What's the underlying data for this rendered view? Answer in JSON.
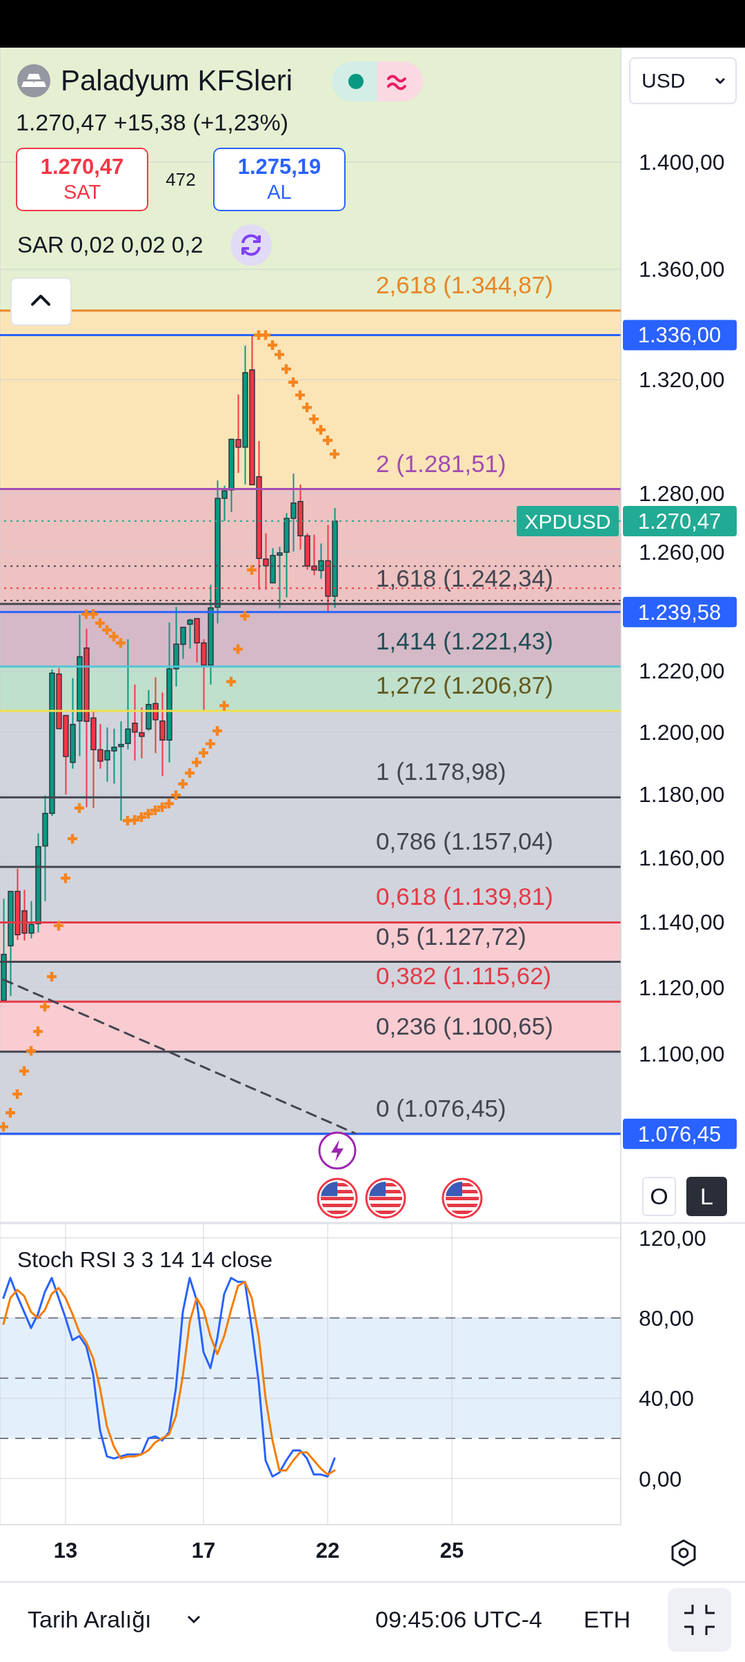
{
  "chart_data": [
    {
      "type": "candlestick",
      "title": "Paladyum KFSleri",
      "subtitle": "1.270,47 +15,38 (+1,23%)",
      "categories": [
        null,
        null,
        null,
        null,
        null,
        null,
        null,
        null,
        null,
        "13",
        null,
        null,
        null,
        null,
        null,
        null,
        null,
        null,
        null,
        null,
        null,
        null,
        null,
        null,
        null,
        null,
        null,
        null,
        null,
        "17",
        null,
        null,
        null,
        null,
        null,
        null,
        null,
        null,
        null,
        null,
        null,
        null,
        null,
        null,
        null,
        null,
        null,
        "22",
        null,
        null,
        null,
        null,
        null,
        null,
        null,
        null,
        null,
        null,
        null,
        null,
        null,
        null,
        null,
        null,
        null,
        "25",
        null,
        null,
        null,
        null,
        null,
        null,
        null,
        null,
        null,
        null,
        null,
        null,
        null,
        null,
        null,
        null,
        null,
        null,
        null,
        null,
        null,
        null,
        null,
        null
      ],
      "ohlc": [
        [
          1116.0,
          1147.1,
          1116.0,
          1130.0
        ],
        [
          1132.6,
          1149.4,
          1117.3,
          1149.4
        ],
        [
          1149.4,
          1156.5,
          1134.4,
          1136.0
        ],
        [
          1143.4,
          1149.9,
          1134.2,
          1136.5
        ],
        [
          1136.5,
          1146.4,
          1134.9,
          1139.2
        ],
        [
          1139.4,
          1167.6,
          1136.7,
          1163.4
        ],
        [
          1163.6,
          1179.6,
          1146.4,
          1173.9
        ],
        [
          1173.9,
          1220.5,
          1173.1,
          1219.3
        ],
        [
          1219.0,
          1220.9,
          1201.0,
          1201.1
        ],
        [
          1205.4,
          1205.6,
          1179.9,
          1192.1
        ],
        [
          1190.2,
          1217.6,
          1188.2,
          1202.5
        ],
        [
          1203.6,
          1238.7,
          1192.2,
          1224.7
        ],
        [
          1227.6,
          1234.0,
          1175.9,
          1203.5
        ],
        [
          1204.6,
          1206.9,
          1175.6,
          1194.3
        ],
        [
          1194.3,
          1202.6,
          1188.2,
          1190.6
        ],
        [
          1191.0,
          1201.5,
          1184.0,
          1194.0
        ],
        [
          1193.9,
          1201.1,
          1183.4,
          1195.1
        ],
        [
          1195.3,
          1203.5,
          1171.6,
          1196.0
        ],
        [
          1196.3,
          1230.5,
          1194.4,
          1201.0
        ],
        [
          1202.9,
          1215.5,
          1190.8,
          1200.0
        ],
        [
          1199.8,
          1208.0,
          1191.5,
          1198.6
        ],
        [
          1201.0,
          1213.7,
          1200.4,
          1209.0
        ],
        [
          1209.3,
          1217.9,
          1193.2,
          1204.0
        ],
        [
          1203.6,
          1212.9,
          1185.8,
          1197.4
        ],
        [
          1197.4,
          1236.1,
          1190.2,
          1220.7
        ],
        [
          1220.7,
          1241.3,
          1214.9,
          1228.9
        ],
        [
          1228.8,
          1234.5,
          1224.0,
          1234.5
        ],
        [
          1235.5,
          1237.4,
          1227.4,
          1236.9
        ],
        [
          1237.4,
          1237.4,
          1222.8,
          1229.3
        ],
        [
          1229.3,
          1230.5,
          1207.1,
          1221.9
        ],
        [
          1221.9,
          1248.8,
          1215.5,
          1241.0
        ],
        [
          1241.2,
          1284.5,
          1235.8,
          1278.3
        ],
        [
          1278.3,
          1282.7,
          1270.5,
          1280.9
        ],
        [
          1281.2,
          1298.9,
          1273.6,
          1298.9
        ],
        [
          1298.8,
          1314.7,
          1287.1,
          1296.1
        ],
        [
          1296.1,
          1332.2,
          1283.1,
          1322.5
        ],
        [
          1323.5,
          1336.0,
          1283.0,
          1283.0
        ],
        [
          1285.8,
          1298.3,
          1247.1,
          1257.7
        ],
        [
          1257.5,
          1266.3,
          1247.1,
          1255.2
        ],
        [
          1249.4,
          1261.2,
          1249.4,
          1258.7
        ],
        [
          1258.8,
          1261.6,
          1240.8,
          1259.6
        ],
        [
          1259.8,
          1273.2,
          1244.5,
          1271.4
        ],
        [
          1271.4,
          1286.9,
          1260.1,
          1276.7
        ],
        [
          1277.2,
          1283.1,
          1260.7,
          1265.4
        ],
        [
          1265.4,
          1266.3,
          1253.9,
          1255.1
        ],
        [
          1255.1,
          1265.8,
          1252.0,
          1253.8
        ],
        [
          1253.6,
          1262.8,
          1250.8,
          1256.9
        ],
        [
          1256.9,
          1269.1,
          1239.6,
          1244.9
        ],
        [
          1244.9,
          1275.0,
          1241.0,
          1270.47
        ],
        null,
        null,
        null,
        null,
        null,
        null,
        null,
        null,
        null,
        null,
        null,
        null,
        null,
        null,
        null,
        null,
        null,
        null,
        null,
        null,
        null,
        null,
        null,
        null,
        null,
        null,
        null,
        null,
        null,
        null,
        null,
        null,
        null,
        null,
        null,
        null,
        null,
        null,
        null,
        null,
        null
      ],
      "colors": [
        "#089981",
        "#089981",
        "#f23645",
        "#f23645",
        "#089981",
        "#089981",
        "#089981",
        "#089981",
        "#f23645",
        "#f23645",
        "#089981",
        "#089981",
        "#f23645",
        "#f23645",
        "#f23645",
        "#089981",
        "#089981",
        "#089981",
        "#089981",
        "#f23645",
        "#f23645",
        "#089981",
        "#f23645",
        "#f23645",
        "#089981",
        "#089981",
        "#089981",
        "#089981",
        "#f23645",
        "#f23645",
        "#089981",
        "#089981",
        "#089981",
        "#089981",
        "#f23645",
        "#089981",
        "#f23645",
        "#f23645",
        "#f23645",
        "#089981",
        "#089981",
        "#089981",
        "#089981",
        "#f23645",
        "#f23645",
        "#f23645",
        "#089981",
        "#f23645",
        "#089981",
        null,
        null,
        null,
        null,
        null,
        null,
        null,
        null,
        null,
        null,
        null,
        null,
        null,
        null,
        null,
        null,
        null,
        null,
        null,
        null,
        null,
        null,
        null,
        null,
        null,
        null,
        null,
        null,
        null,
        null,
        null,
        null,
        null,
        null,
        null,
        null,
        null,
        null,
        null,
        null,
        null
      ],
      "series": [
        {
          "type": "scatter",
          "color": "#f5841f",
          "marker": "cross",
          "values": [
            1078.5,
            1082.6,
            1088.1,
            1094.9,
            1100.9,
            1106.7,
            1114.1,
            1123.2,
            1138.8,
            1153.5,
            1165.9,
            1175.6,
            1238.9,
            1238.9,
            1235.9,
            1233.6,
            1231.4,
            1229.3,
            1171.6,
            1171.8,
            1172.7,
            1173.8,
            1174.9,
            1175.9,
            1177.0,
            1179.7,
            1183.3,
            1186.8,
            1190.2,
            1193.3,
            1196.2,
            1200.4,
            1208.6,
            1216.5,
            1227.2,
            1238.3,
            1253.8,
            1336.0,
            1336.0,
            1332.4,
            1329.0,
            1323.8,
            1319.1,
            1314.5,
            1310.1,
            1306.0,
            1302.2,
            1298.5,
            1293.7,
            null,
            null,
            null,
            null,
            null,
            null,
            null,
            null,
            null,
            null,
            null,
            null,
            null,
            null,
            null,
            null,
            null,
            null,
            null,
            null,
            null,
            null,
            null,
            null,
            null,
            null,
            null,
            null,
            null,
            null,
            null,
            null,
            null,
            null,
            null,
            null,
            null,
            null,
            null,
            null,
            null
          ]
        },
        {
          "type": "line",
          "color": "#434651",
          "line_style": "dashed",
          "values": [
            1122.3,
            null,
            null,
            null,
            null,
            null,
            null,
            null,
            null,
            null,
            null,
            null,
            null,
            null,
            null,
            null,
            null,
            null,
            null,
            null,
            null,
            null,
            null,
            null,
            null,
            null,
            null,
            null,
            null,
            null,
            null,
            null,
            null,
            null,
            null,
            null,
            null,
            null,
            null,
            null,
            null,
            null,
            null,
            null,
            null,
            null,
            null,
            null,
            null,
            null,
            null,
            1076.6,
            null,
            null,
            null,
            null,
            null,
            null,
            null,
            null,
            null,
            null,
            null,
            null,
            null,
            null,
            null,
            null,
            null,
            null,
            null,
            null,
            null,
            null,
            null,
            null,
            null,
            null,
            null,
            null,
            null,
            null,
            null,
            null,
            null,
            null,
            null,
            null,
            null,
            null
          ]
        }
      ],
      "log": true,
      "ylim": [
        1051,
        1444
      ],
      "yticks": [
        {
          "value": 1100,
          "label": "1.100,00"
        },
        {
          "value": 1120,
          "label": "1.120,00"
        },
        {
          "value": 1140,
          "label": "1.140,00"
        },
        {
          "value": 1160,
          "label": "1.160,00"
        },
        {
          "value": 1180,
          "label": "1.180,00"
        },
        {
          "value": 1200,
          "label": "1.200,00"
        },
        {
          "value": 1220,
          "label": "1.220,00"
        },
        {
          "value": 1260,
          "label": "1.260,00"
        },
        {
          "value": 1280,
          "label": "1.280,00"
        },
        {
          "value": 1320,
          "label": "1.320,00"
        },
        {
          "value": 1360,
          "label": "1.360,00"
        },
        {
          "value": 1400,
          "label": "1.400,00"
        }
      ],
      "grid": true,
      "tick_labels": "y",
      "bands": [
        {
          "axis": "y",
          "from": 1076.45,
          "to": 1100.65,
          "color": "#d1d4dc"
        },
        {
          "axis": "y",
          "from": 1100.65,
          "to": 1115.62,
          "color": "#f9ccd1"
        },
        {
          "axis": "y",
          "from": 1115.62,
          "to": 1127.72,
          "color": "#d1d4dc"
        },
        {
          "axis": "y",
          "from": 1127.72,
          "to": 1139.81,
          "color": "#f9ccd1"
        },
        {
          "axis": "y",
          "from": 1139.81,
          "to": 1206.87,
          "color": "#d1d4dc"
        },
        {
          "axis": "y",
          "from": 1206.87,
          "to": 1221.43,
          "color": "#bfe0cc"
        },
        {
          "axis": "y",
          "from": 1221.43,
          "to": 1242.34,
          "color": "#d5b9c6"
        },
        {
          "axis": "y",
          "from": 1242.34,
          "to": 1281.51,
          "color": "#edc2c1"
        },
        {
          "axis": "y",
          "from": 1281.51,
          "to": 1344.87,
          "color": "#fbe5b6"
        },
        {
          "axis": "y",
          "from": 1344.87,
          "to": 1444,
          "color": "#e4f0d1"
        }
      ],
      "ref_lines": [
        {
          "axis": "y",
          "value": 1076.45,
          "color": "#434651"
        },
        {
          "axis": "y",
          "value": 1100.65,
          "color": "#434651"
        },
        {
          "axis": "y",
          "value": 1115.62,
          "color": "#e53946"
        },
        {
          "axis": "y",
          "value": 1127.72,
          "color": "#434651"
        },
        {
          "axis": "y",
          "value": 1139.81,
          "color": "#e53946"
        },
        {
          "axis": "y",
          "value": 1157.04,
          "color": "#434651"
        },
        {
          "axis": "y",
          "value": 1178.98,
          "color": "#434651"
        },
        {
          "axis": "y",
          "value": 1206.87,
          "color": "#f2df4a"
        },
        {
          "axis": "y",
          "value": 1221.43,
          "color": "#52c4d6"
        },
        {
          "axis": "y",
          "value": 1242.34,
          "color": "#434651"
        },
        {
          "axis": "y",
          "value": 1281.51,
          "color": "#a34bb5"
        },
        {
          "axis": "y",
          "value": 1344.87,
          "color": "#e8862a"
        },
        {
          "axis": "y",
          "value": 1255.09,
          "color": "#434651",
          "line_style": "dotted"
        },
        {
          "axis": "y",
          "value": 1247.6,
          "color": "#f23645",
          "line_style": "dotted"
        },
        {
          "axis": "y",
          "value": 1243.5,
          "color": "#434651",
          "line_style": "dotted"
        },
        {
          "axis": "y",
          "value": 1336,
          "label": "1.336,00",
          "color": "#2962ff"
        },
        {
          "axis": "y",
          "value": 1270.47,
          "label": "1.270,47",
          "color": "#22ab94",
          "line_style": "dotted"
        },
        {
          "axis": "y",
          "value": 1239.58,
          "label": "1.239,58",
          "color": "#2962ff"
        },
        {
          "axis": "y",
          "value": 1076.45,
          "label": "1.076,45",
          "color": "#2962ff"
        }
      ],
      "annotations": [
        "1.270,47",
        "SAT",
        "472",
        "1.275,19",
        "AL",
        "SAR 0,02 0,02 0,2",
        "USD",
        "O",
        "L",
        {
          "text": "XPDUSD",
          "y": 1270.47
        },
        {
          "text": "2,618 (1.344,87)",
          "y": 1344.87
        },
        {
          "text": "2 (1.281,51)",
          "y": 1281.51
        },
        {
          "text": "1,618 (1.242,34)",
          "y": 1242.34
        },
        {
          "text": "1,414 (1.221,43)",
          "y": 1221.43
        },
        {
          "text": "1,272 (1.206,87)",
          "y": 1206.87
        },
        {
          "text": "1 (1.178,98)",
          "y": 1178.98
        },
        {
          "text": "0,786 (1.157,04)",
          "y": 1157.04
        },
        {
          "text": "0,618 (1.139,81)",
          "y": 1139.81
        },
        {
          "text": "0,5 (1.127,72)",
          "y": 1127.72
        },
        {
          "text": "0,382 (1.115,62)",
          "y": 1115.62
        },
        {
          "text": "0,236 (1.100,65)",
          "y": 1100.65
        },
        {
          "text": "0 (1.076,45)",
          "y": 1076.45
        }
      ]
    },
    {
      "type": "line",
      "title": "Stoch RSI 3 3 14 14 close",
      "categories": [
        null,
        null,
        null,
        null,
        null,
        null,
        null,
        null,
        null,
        "13",
        null,
        null,
        null,
        null,
        null,
        null,
        null,
        null,
        null,
        null,
        null,
        null,
        null,
        null,
        null,
        null,
        null,
        null,
        null,
        "17",
        null,
        null,
        null,
        null,
        null,
        null,
        null,
        null,
        null,
        null,
        null,
        null,
        null,
        null,
        null,
        null,
        null,
        "22",
        null,
        null,
        null,
        null,
        null,
        null,
        null,
        null,
        null,
        null,
        null,
        null,
        null,
        null,
        null,
        null,
        null,
        "25",
        null,
        null,
        null,
        null,
        null,
        null,
        null,
        null,
        null,
        null,
        null,
        null,
        null,
        null,
        null,
        null,
        null,
        null,
        null,
        null,
        null,
        null,
        null,
        null
      ],
      "series": [
        {
          "color": "#2962ff",
          "values": [
            90,
            100,
            91,
            83,
            75,
            82,
            93,
            100,
            90,
            80,
            69,
            71,
            66,
            52,
            24,
            11,
            10,
            11,
            12,
            12,
            12,
            20,
            21,
            19,
            23,
            45,
            83,
            100,
            89,
            63,
            55,
            70,
            92,
            100,
            98,
            98,
            75,
            48,
            9,
            1,
            3,
            9,
            14,
            14,
            10,
            2,
            2,
            1,
            10,
            null,
            null,
            null,
            null,
            null,
            null,
            null,
            null,
            null,
            null,
            null,
            null,
            null,
            null,
            null,
            null,
            null,
            null,
            null,
            null,
            null,
            null,
            null,
            null,
            null,
            null,
            null,
            null,
            null,
            null,
            null,
            null,
            null,
            null,
            null,
            null,
            null,
            null,
            null,
            null,
            null
          ]
        },
        {
          "color": "#f57c00",
          "values": [
            77,
            90,
            94,
            91,
            83,
            80,
            84,
            92,
            95,
            90,
            82,
            73,
            68,
            60,
            45,
            26,
            16,
            10,
            11,
            11,
            12,
            14,
            18,
            20,
            22,
            31,
            51,
            78,
            90,
            84,
            71,
            62,
            71,
            84,
            96,
            98,
            90,
            71,
            40,
            19,
            4,
            4,
            9,
            13,
            13,
            9,
            5,
            2,
            4,
            null,
            null,
            null,
            null,
            null,
            null,
            null,
            null,
            null,
            null,
            null,
            null,
            null,
            null,
            null,
            null,
            null,
            null,
            null,
            null,
            null,
            null,
            null,
            null,
            null,
            null,
            null,
            null,
            null,
            null,
            null,
            null,
            null,
            null,
            null,
            null,
            null,
            null,
            null,
            null,
            null
          ]
        }
      ],
      "ylim": [
        -23,
        127
      ],
      "yticks": [
        {
          "value": 0,
          "label": "0,00"
        },
        {
          "value": 40,
          "label": "40,00"
        },
        {
          "value": 80,
          "label": "80,00"
        },
        {
          "value": 120,
          "label": "120,00"
        }
      ],
      "grid": true,
      "bands": [
        {
          "axis": "y",
          "from": 20,
          "to": 80,
          "color": "#e3f0fb"
        }
      ],
      "ref_lines": [
        {
          "axis": "y",
          "value": 80,
          "color": "#787b86",
          "line_style": "dashed"
        },
        {
          "axis": "y",
          "value": 50,
          "color": "#787b86",
          "line_style": "dashed"
        },
        {
          "axis": "y",
          "value": 20,
          "color": "#787b86",
          "line_style": "dashed"
        }
      ],
      "annotations": [
        "Tarih Aralığı",
        "09:45:06 UTC-4",
        "ETH"
      ]
    }
  ]
}
